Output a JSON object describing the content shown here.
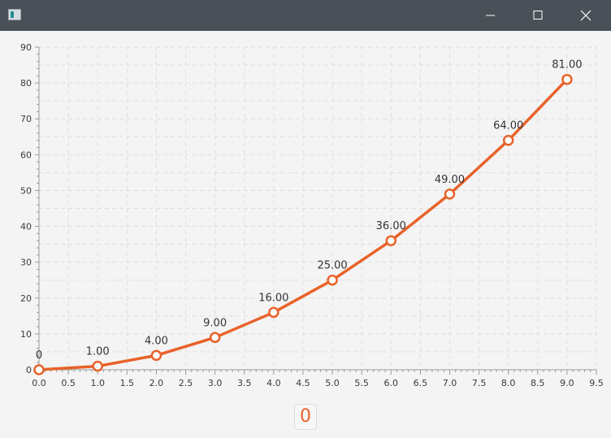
{
  "window": {
    "title": ""
  },
  "icons": {
    "app": "app-window-icon",
    "minimize": "minimize-icon",
    "maximize": "maximize-icon",
    "close": "close-icon"
  },
  "colors": {
    "series": "#e8622a",
    "grid": "#dedede",
    "titlebar": "#4a5057",
    "background": "#f4f4f4"
  },
  "chart_data": {
    "type": "line",
    "x": [
      0,
      1,
      2,
      3,
      4,
      5,
      6,
      7,
      8,
      9
    ],
    "series": [
      {
        "values": [
          0,
          1,
          4,
          9,
          16,
          25,
          36,
          49,
          64,
          81
        ]
      }
    ],
    "data_labels": [
      "0",
      "1.00",
      "4.00",
      "9.00",
      "16.00",
      "25.00",
      "36.00",
      "49.00",
      "64.00",
      "81.00"
    ],
    "xlim": [
      0,
      9.5
    ],
    "ylim": [
      0,
      90
    ],
    "x_ticks": [
      "0.0",
      "0.5",
      "1.0",
      "1.5",
      "2.0",
      "2.5",
      "3.0",
      "3.5",
      "4.0",
      "4.5",
      "5.0",
      "5.5",
      "6.0",
      "6.5",
      "7.0",
      "7.5",
      "8.0",
      "8.5",
      "9.0",
      "9.5"
    ],
    "y_ticks": [
      "0",
      "10",
      "20",
      "30",
      "40",
      "50",
      "60",
      "70",
      "80",
      "90"
    ],
    "grid": true,
    "legend": "none"
  },
  "counter_button": {
    "label": "0"
  }
}
